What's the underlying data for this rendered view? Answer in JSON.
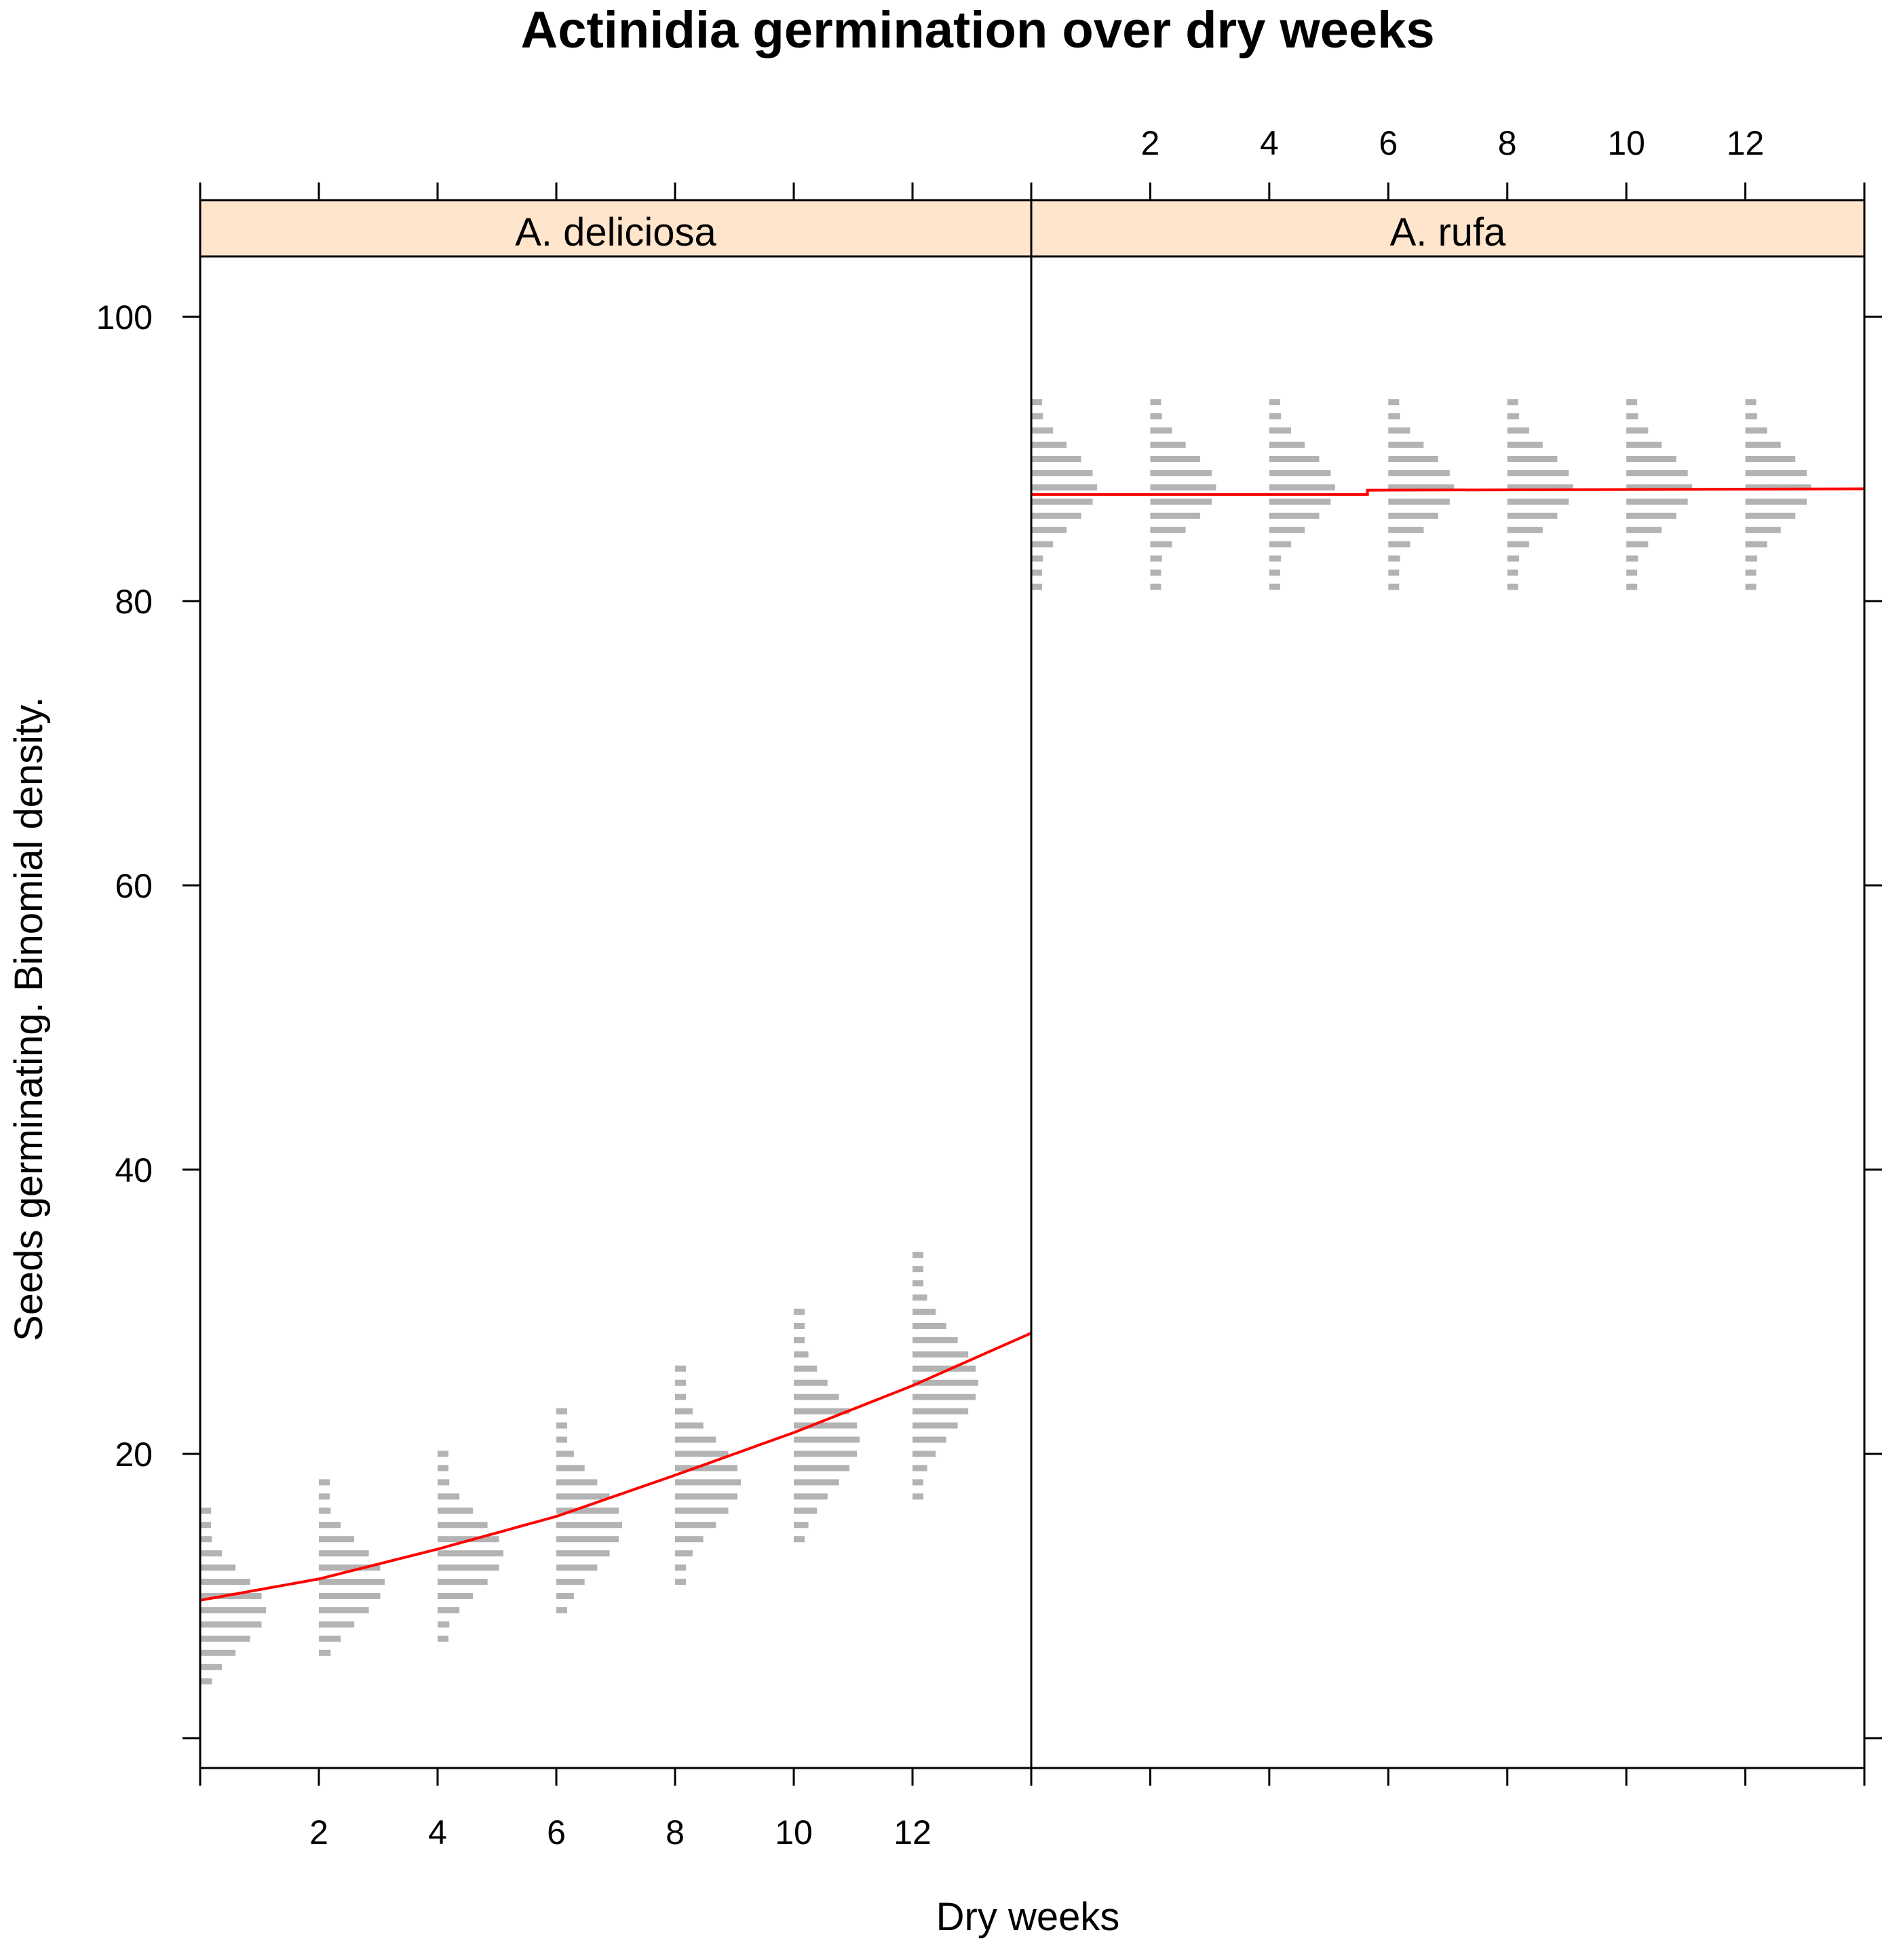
{
  "chart_data": {
    "type": "lattice-violin",
    "title": "Actinidia germination over dry weeks",
    "xlabel": "Dry weeks",
    "ylabel": "Seeds germinating.  Binomial density.",
    "xlim": [
      0,
      14
    ],
    "ylim": [
      -2,
      108
    ],
    "x_ticks": [
      0,
      2,
      4,
      6,
      8,
      10,
      12,
      14
    ],
    "x_tick_labels": [
      "2",
      "4",
      "6",
      "8",
      "10",
      "12"
    ],
    "y_ticks": [
      0,
      20,
      40,
      60,
      80,
      100
    ],
    "y_tick_labels": [
      "20",
      "40",
      "60",
      "80",
      "100"
    ],
    "density_color": "#b3b3b3",
    "fit_color": "#ff0000",
    "strip_color": "#ffe5cc",
    "panels": [
      {
        "strip": "A. deliciosa",
        "weeks": [
          0,
          2,
          4,
          6,
          8,
          10,
          12
        ],
        "count_ranges": [
          [
            4,
            16
          ],
          [
            6,
            18
          ],
          [
            7,
            20
          ],
          [
            9,
            23
          ],
          [
            11,
            26
          ],
          [
            14,
            30
          ],
          [
            17,
            34
          ]
        ],
        "peak_counts": [
          9,
          11,
          13,
          15,
          18,
          21,
          25
        ],
        "fit_x": [
          0,
          2,
          4,
          6,
          8,
          10,
          12,
          14
        ],
        "fit_y": [
          9.7,
          11.2,
          13.3,
          15.6,
          18.5,
          21.5,
          24.8,
          28.5
        ]
      },
      {
        "strip": "A. rufa",
        "weeks": [
          0,
          2,
          4,
          6,
          8,
          10,
          12
        ],
        "count_ranges": [
          [
            81,
            94
          ],
          [
            81,
            94
          ],
          [
            81,
            94
          ],
          [
            81,
            94
          ],
          [
            81,
            94
          ],
          [
            81,
            94
          ],
          [
            81,
            94
          ]
        ],
        "peak_counts": [
          88,
          88,
          88,
          88,
          88,
          88,
          88
        ],
        "fit_x": [
          0,
          5.65,
          5.65,
          14
        ],
        "fit_y": [
          87.5,
          87.5,
          87.8,
          87.9
        ]
      }
    ]
  }
}
